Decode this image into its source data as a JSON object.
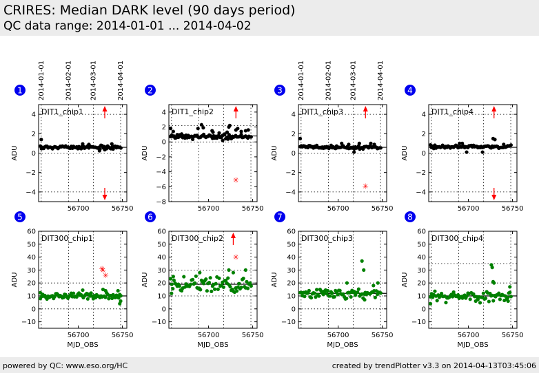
{
  "header": {
    "title": "CRIRES: Median DARK level (90 days period)",
    "subtitle": "QC data range: 2014-01-01 ... 2014-04-02"
  },
  "footer": {
    "left": "powered by QC: www.eso.org/HC",
    "right": "created by trendPlotter v3.3 on 2014-04-13T03:45:06"
  },
  "colors": {
    "dark": "#000000",
    "dit300": "#008000",
    "outlier": "#ff0000",
    "badge": "#0000ee"
  },
  "chart_data": {
    "type": "scatter",
    "date_ticks": [
      {
        "label": "2014-01-01",
        "mjd": 56658
      },
      {
        "label": "2014-02-01",
        "mjd": 56689
      },
      {
        "label": "2014-03-01",
        "mjd": 56717
      },
      {
        "label": "2014-04-01",
        "mjd": 56748
      }
    ],
    "xlabel": "MJD_OBS",
    "xlim": [
      56655,
      56755
    ],
    "xticks": [
      56700,
      56750
    ],
    "panels": [
      {
        "id": "1",
        "name": "DIT1_chip1",
        "ylabel": "ADU",
        "ylim": [
          -5,
          5
        ],
        "yticks": [
          -4,
          -2,
          0,
          2,
          4
        ],
        "grid_y": [
          -4,
          0,
          4
        ],
        "ref": 0.6,
        "color": "#000000",
        "base": 0.6,
        "noise": 0.13,
        "seed": 11,
        "extras": [
          [
            56658,
            1.4
          ],
          [
            56705,
            0.95
          ],
          [
            56712,
            0.9
          ],
          [
            56724,
            0.25
          ],
          [
            56730,
            0.35
          ],
          [
            56738,
            0.95
          ]
        ],
        "outliers": [],
        "arrows": [
          {
            "x": 56730,
            "dir": "up"
          },
          {
            "x": 56730,
            "dir": "down"
          }
        ]
      },
      {
        "id": "2",
        "name": "DIT1_chip2",
        "ylabel": "ADU",
        "ylim": [
          -8,
          5
        ],
        "yticks": [
          -8,
          -6,
          -4,
          -2,
          0,
          2,
          4
        ],
        "grid_y": [
          -8,
          0,
          2.2
        ],
        "ref": 0.8,
        "color": "#000000",
        "base": 0.7,
        "noise": 0.22,
        "seed": 23,
        "extras": [
          [
            56657,
            1.8
          ],
          [
            56660,
            1.4
          ],
          [
            56688,
            1.8
          ],
          [
            56692,
            2.3
          ],
          [
            56694,
            1.9
          ],
          [
            56704,
            1.5
          ],
          [
            56705,
            1.3
          ],
          [
            56712,
            1.2
          ],
          [
            56716,
            0.2
          ],
          [
            56721,
            1.3
          ],
          [
            56723,
            2.0
          ],
          [
            56724,
            2.2
          ],
          [
            56731,
            1.6
          ],
          [
            56733,
            1.8
          ],
          [
            56737,
            1.4
          ],
          [
            56742,
            1.5
          ],
          [
            56745,
            1.6
          ]
        ],
        "outliers": [
          [
            56731,
            -5.1
          ]
        ],
        "arrows": [
          {
            "x": 56731,
            "dir": "up"
          }
        ]
      },
      {
        "id": "3",
        "name": "DIT1_chip3",
        "ylabel": "ADU",
        "ylim": [
          -5,
          5
        ],
        "yticks": [
          -4,
          -2,
          0,
          2,
          4
        ],
        "grid_y": [
          -4,
          0,
          4
        ],
        "ref": 0.6,
        "color": "#000000",
        "base": 0.6,
        "noise": 0.12,
        "seed": 37,
        "extras": [
          [
            56657,
            1.5
          ],
          [
            56704,
            1.0
          ],
          [
            56712,
            0.9
          ],
          [
            56718,
            0.1
          ],
          [
            56724,
            1.0
          ],
          [
            56737,
            1.0
          ],
          [
            56741,
            0.9
          ]
        ],
        "outliers": [
          [
            56731,
            -3.4
          ]
        ],
        "arrows": [
          {
            "x": 56731,
            "dir": "up"
          }
        ]
      },
      {
        "id": "4",
        "name": "DIT1_chip4",
        "ylabel": "ADU",
        "ylim": [
          -5,
          5
        ],
        "yticks": [
          -4,
          -2,
          0,
          2,
          4
        ],
        "grid_y": [
          -4,
          0,
          4
        ],
        "ref": 0.6,
        "color": "#000000",
        "base": 0.65,
        "noise": 0.13,
        "seed": 41,
        "extras": [
          [
            56690,
            1.0
          ],
          [
            56693,
            1.0
          ],
          [
            56698,
            0.1
          ],
          [
            56716,
            0.1
          ],
          [
            56728,
            1.5
          ],
          [
            56730,
            1.4
          ],
          [
            56740,
            0.9
          ]
        ],
        "outliers": [],
        "arrows": [
          {
            "x": 56729,
            "dir": "up"
          },
          {
            "x": 56729,
            "dir": "down"
          }
        ]
      },
      {
        "id": "5",
        "name": "DIT300_chip1",
        "ylabel": "ADU",
        "ylim": [
          -15,
          60
        ],
        "yticks": [
          -10,
          0,
          10,
          20,
          30,
          40,
          50,
          60
        ],
        "grid_y": [
          0,
          10,
          20
        ],
        "ref": 10,
        "color": "#008000",
        "base": 10,
        "noise": 1.7,
        "seed": 53,
        "extras": [
          [
            56657,
            12.5
          ],
          [
            56705,
            14.5
          ],
          [
            56728,
            15.0
          ],
          [
            56731,
            14.0
          ],
          [
            56745,
            14.0
          ],
          [
            56748,
            6.0
          ],
          [
            56747,
            4.0
          ]
        ],
        "outliers": [
          [
            56727,
            31.0
          ],
          [
            56728,
            30.0
          ],
          [
            56731,
            26.0
          ]
        ],
        "arrows": []
      },
      {
        "id": "6",
        "name": "DIT300_chip2",
        "ylabel": "ADU",
        "ylim": [
          -15,
          60
        ],
        "yticks": [
          -10,
          0,
          10,
          20,
          30,
          40,
          50,
          60
        ],
        "grid_y": [
          10,
          20,
          30
        ],
        "ref": 19,
        "color": "#008000",
        "base": 19,
        "noise": 4.0,
        "seed": 67,
        "extras": [
          [
            56658,
            12.0
          ],
          [
            56660,
            25.0
          ],
          [
            56690,
            28.0
          ],
          [
            56723,
            30.0
          ],
          [
            56728,
            28.0
          ],
          [
            56742,
            30.0
          ]
        ],
        "outliers": [
          [
            56731,
            40.0
          ]
        ],
        "arrows": [
          {
            "x": 56728,
            "dir": "up"
          }
        ]
      },
      {
        "id": "7",
        "name": "DIT300_chip3",
        "ylabel": "ADU",
        "ylim": [
          -15,
          60
        ],
        "yticks": [
          -10,
          0,
          10,
          20,
          30,
          40,
          50,
          60
        ],
        "grid_y": [
          0,
          10,
          20
        ],
        "ref": 12,
        "color": "#008000",
        "base": 12,
        "noise": 2.8,
        "seed": 79,
        "extras": [
          [
            56727,
            37.0
          ],
          [
            56729,
            30.0
          ],
          [
            56710,
            20.0
          ],
          [
            56730,
            7.0
          ],
          [
            56745,
            20.0
          ],
          [
            56740,
            18.0
          ]
        ],
        "outliers": [],
        "arrows": []
      },
      {
        "id": "8",
        "name": "DIT300_chip4",
        "ylabel": "ADU",
        "ylim": [
          -15,
          60
        ],
        "yticks": [
          -10,
          0,
          10,
          20,
          30,
          40,
          50,
          60
        ],
        "grid_y": [
          10,
          20,
          35
        ],
        "ref": 10,
        "color": "#008000",
        "base": 10,
        "noise": 3.0,
        "seed": 97,
        "extras": [
          [
            56726,
            34.0
          ],
          [
            56727,
            32.0
          ],
          [
            56728,
            21.0
          ],
          [
            56729,
            20.0
          ],
          [
            56657,
            4.0
          ],
          [
            56745,
            6.0
          ],
          [
            56747,
            17.0
          ]
        ],
        "outliers": [],
        "arrows": []
      }
    ]
  }
}
